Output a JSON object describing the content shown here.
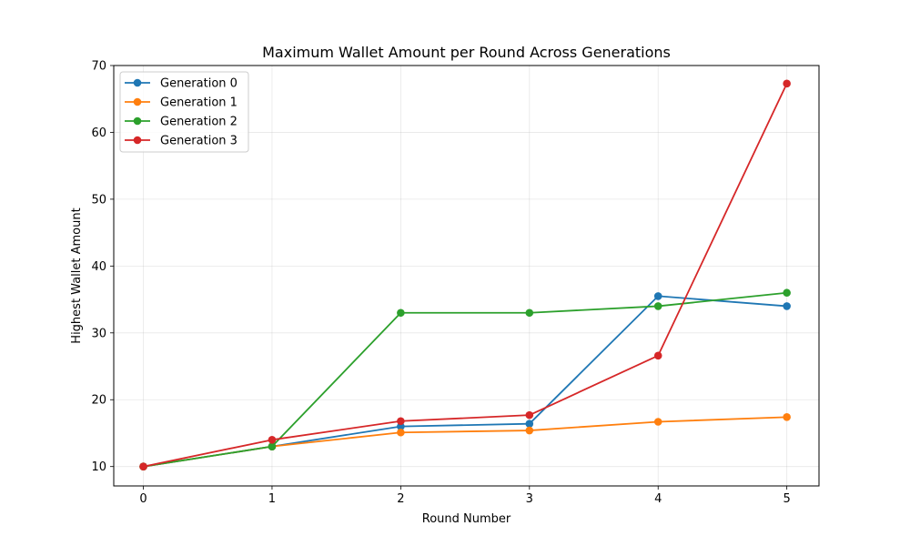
{
  "chart_data": {
    "type": "line",
    "title": "Maximum Wallet Amount per Round Across Generations",
    "xlabel": "Round Number",
    "ylabel": "Highest Wallet Amount",
    "x": [
      0,
      1,
      2,
      3,
      4,
      5
    ],
    "x_ticks": [
      "0",
      "1",
      "2",
      "3",
      "4",
      "5"
    ],
    "xlim": [
      -0.23,
      5.25
    ],
    "y_ticks": [
      "10",
      "20",
      "30",
      "40",
      "50",
      "60",
      "70"
    ],
    "y_tick_values": [
      10,
      20,
      30,
      40,
      50,
      60,
      70
    ],
    "ylim": [
      7.1,
      70.0
    ],
    "grid": true,
    "legend_position": "top-left",
    "markers": "circle",
    "series": [
      {
        "name": "Generation 0",
        "color": "#1f77b4",
        "values": [
          10.0,
          13.0,
          16.0,
          16.4,
          35.5,
          34.0
        ]
      },
      {
        "name": "Generation 1",
        "color": "#ff7f0e",
        "values": [
          10.0,
          13.0,
          15.1,
          15.4,
          16.7,
          17.4
        ]
      },
      {
        "name": "Generation 2",
        "color": "#2ca02c",
        "values": [
          10.0,
          13.0,
          33.0,
          33.0,
          34.0,
          36.0
        ]
      },
      {
        "name": "Generation 3",
        "color": "#d62728",
        "values": [
          10.0,
          14.0,
          16.8,
          17.7,
          26.6,
          67.3
        ]
      }
    ]
  }
}
